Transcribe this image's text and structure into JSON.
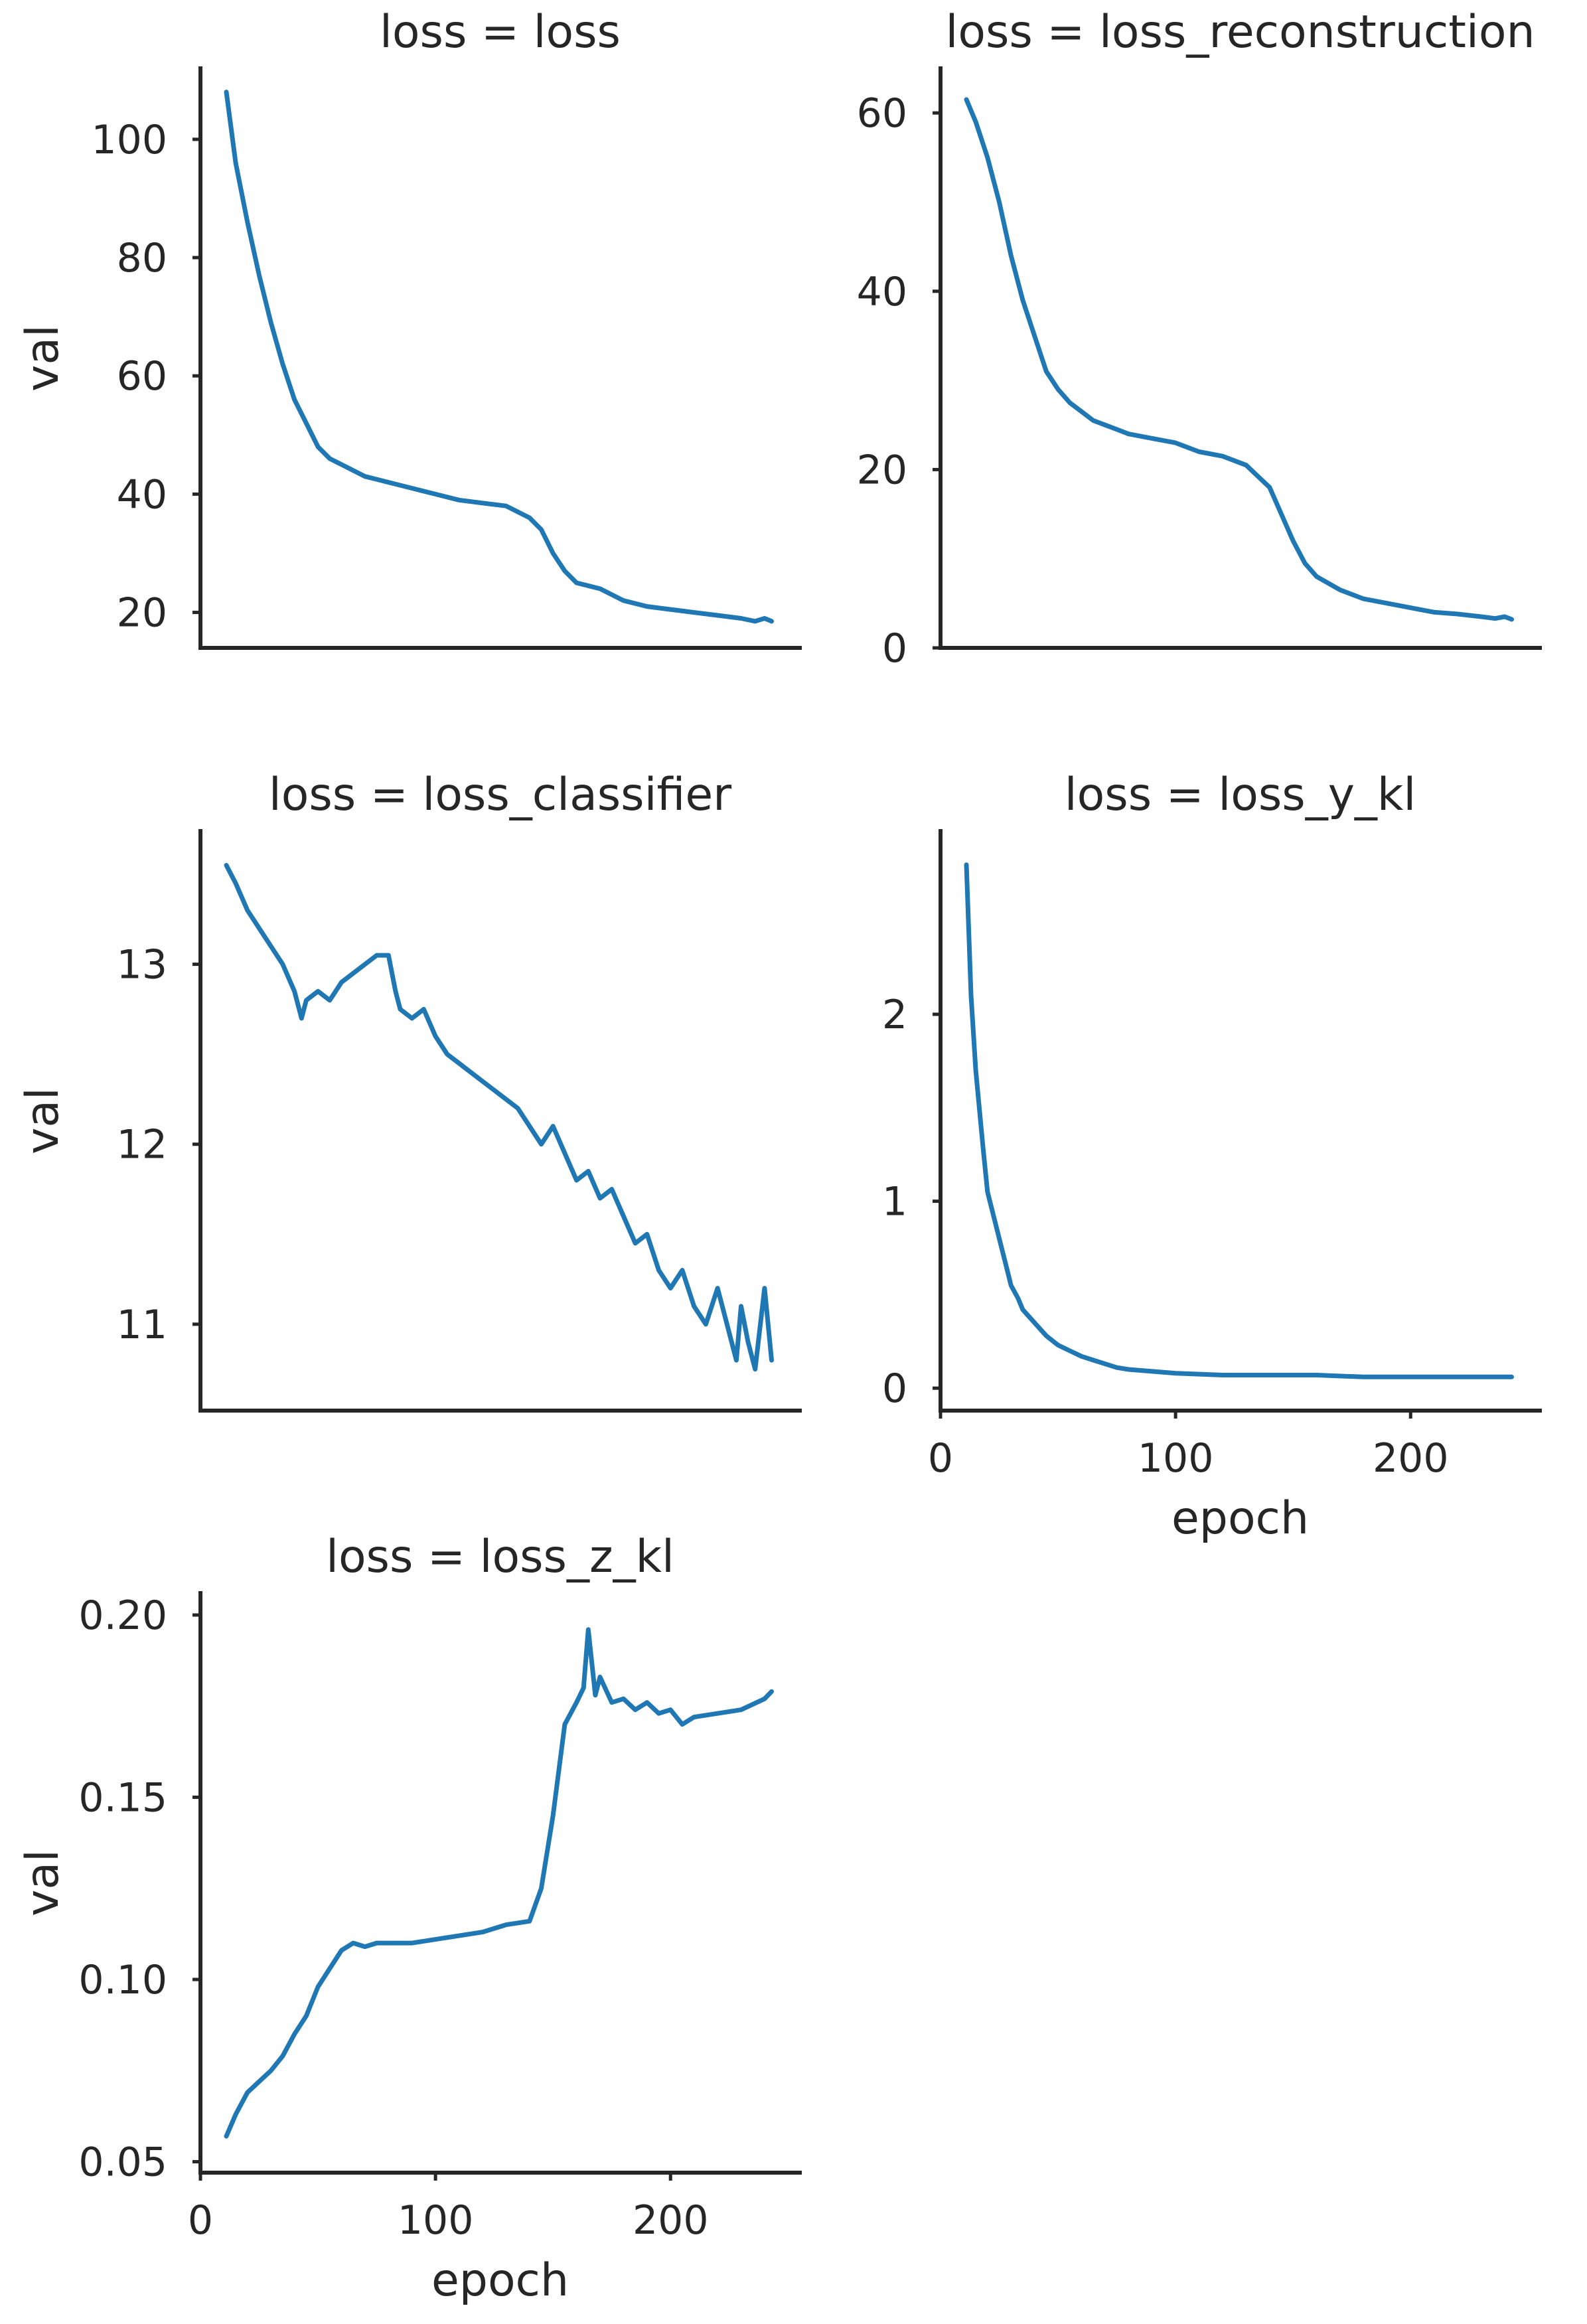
{
  "colors": {
    "line": "#1f77b4",
    "axis": "#262626",
    "background": "#ffffff"
  },
  "chart_data": [
    {
      "type": "line",
      "title": "loss = loss",
      "xlabel": "",
      "ylabel": "val",
      "xlim": [
        0,
        255
      ],
      "ylim": [
        14,
        112
      ],
      "yticks": [
        20,
        40,
        60,
        80,
        100
      ],
      "ytick_labels": [
        "20",
        "40",
        "60",
        "80",
        "100"
      ],
      "xticks": [],
      "xtick_labels": [],
      "series": [
        {
          "x": [
            11,
            15,
            20,
            25,
            30,
            35,
            40,
            45,
            50,
            55,
            60,
            65,
            70,
            75,
            80,
            90,
            100,
            110,
            120,
            130,
            140,
            145,
            150,
            155,
            160,
            170,
            180,
            190,
            200,
            210,
            220,
            230,
            236,
            240,
            243
          ],
          "values": [
            108,
            96,
            86,
            77,
            69,
            62,
            56,
            52,
            48,
            46,
            45,
            44,
            43,
            42.5,
            42,
            41,
            40,
            39,
            38.5,
            38,
            36,
            34,
            30,
            27,
            25,
            24,
            22,
            21,
            20.5,
            20,
            19.5,
            19,
            18.5,
            19,
            18.5
          ]
        }
      ]
    },
    {
      "type": "line",
      "title": "loss = loss_reconstruction",
      "xlabel": "",
      "ylabel": "",
      "xlim": [
        0,
        255
      ],
      "ylim": [
        0,
        65
      ],
      "yticks": [
        0,
        20,
        40,
        60
      ],
      "ytick_labels": [
        "0",
        "20",
        "40",
        "60"
      ],
      "xticks": [],
      "xtick_labels": [],
      "series": [
        {
          "x": [
            11,
            15,
            20,
            25,
            30,
            35,
            40,
            45,
            50,
            55,
            60,
            65,
            70,
            75,
            80,
            90,
            100,
            110,
            120,
            130,
            140,
            145,
            150,
            155,
            160,
            170,
            180,
            190,
            200,
            210,
            220,
            230,
            236,
            240,
            243
          ],
          "values": [
            61.5,
            59,
            55,
            50,
            44,
            39,
            35,
            31,
            29,
            27.5,
            26.5,
            25.5,
            25,
            24.5,
            24,
            23.5,
            23,
            22,
            21.5,
            20.5,
            18,
            15,
            12,
            9.5,
            8,
            6.5,
            5.5,
            5,
            4.5,
            4,
            3.8,
            3.5,
            3.3,
            3.5,
            3.2
          ]
        }
      ]
    },
    {
      "type": "line",
      "title": "loss = loss_classifier",
      "xlabel": "",
      "ylabel": "val",
      "xlim": [
        0,
        255
      ],
      "ylim": [
        10.52,
        13.74
      ],
      "yticks": [
        11,
        12,
        13
      ],
      "ytick_labels": [
        "11",
        "12",
        "13"
      ],
      "xticks": [],
      "xtick_labels": [],
      "series": [
        {
          "x": [
            11,
            15,
            20,
            25,
            30,
            35,
            40,
            43,
            45,
            50,
            55,
            60,
            65,
            70,
            75,
            80,
            83,
            85,
            90,
            95,
            100,
            105,
            110,
            115,
            120,
            125,
            130,
            135,
            140,
            145,
            150,
            155,
            160,
            165,
            170,
            175,
            180,
            185,
            190,
            195,
            200,
            205,
            210,
            215,
            220,
            225,
            228,
            230,
            233,
            236,
            240,
            243
          ],
          "values": [
            13.55,
            13.45,
            13.3,
            13.2,
            13.1,
            13.0,
            12.85,
            12.7,
            12.8,
            12.85,
            12.8,
            12.9,
            12.95,
            13.0,
            13.05,
            13.05,
            12.85,
            12.75,
            12.7,
            12.75,
            12.6,
            12.5,
            12.45,
            12.4,
            12.35,
            12.3,
            12.25,
            12.2,
            12.1,
            12.0,
            12.1,
            11.95,
            11.8,
            11.85,
            11.7,
            11.75,
            11.6,
            11.45,
            11.5,
            11.3,
            11.2,
            11.3,
            11.1,
            11.0,
            11.2,
            10.95,
            10.8,
            11.1,
            10.9,
            10.75,
            11.2,
            10.8
          ]
        }
      ]
    },
    {
      "type": "line",
      "title": "loss = loss_y_kl",
      "xlabel": "epoch",
      "ylabel": "",
      "xlim": [
        0,
        255
      ],
      "ylim": [
        -0.12,
        2.98
      ],
      "yticks": [
        0,
        1,
        2
      ],
      "ytick_labels": [
        "0",
        "1",
        "2"
      ],
      "xticks": [
        0,
        100,
        200
      ],
      "xtick_labels": [
        "0",
        "100",
        "200"
      ],
      "series": [
        {
          "x": [
            11,
            13,
            15,
            18,
            20,
            22,
            25,
            28,
            30,
            33,
            35,
            40,
            45,
            50,
            55,
            60,
            65,
            70,
            75,
            80,
            90,
            100,
            120,
            140,
            160,
            180,
            200,
            220,
            243
          ],
          "values": [
            2.8,
            2.1,
            1.7,
            1.3,
            1.05,
            0.95,
            0.8,
            0.65,
            0.55,
            0.48,
            0.42,
            0.35,
            0.28,
            0.23,
            0.2,
            0.17,
            0.15,
            0.13,
            0.11,
            0.1,
            0.09,
            0.08,
            0.07,
            0.07,
            0.07,
            0.06,
            0.06,
            0.06,
            0.06
          ]
        }
      ]
    },
    {
      "type": "line",
      "title": "loss = loss_z_kl",
      "xlabel": "epoch",
      "ylabel": "val",
      "xlim": [
        0,
        255
      ],
      "ylim": [
        0.047,
        0.206
      ],
      "yticks": [
        0.05,
        0.1,
        0.15,
        0.2
      ],
      "ytick_labels": [
        "0.05",
        "0.10",
        "0.15",
        "0.20"
      ],
      "xticks": [
        0,
        100,
        200
      ],
      "xtick_labels": [
        "0",
        "100",
        "200"
      ],
      "series": [
        {
          "x": [
            11,
            15,
            20,
            25,
            30,
            35,
            40,
            45,
            50,
            55,
            60,
            65,
            70,
            75,
            80,
            90,
            100,
            110,
            120,
            130,
            140,
            145,
            150,
            153,
            155,
            160,
            163,
            165,
            168,
            170,
            175,
            180,
            185,
            190,
            195,
            200,
            205,
            210,
            220,
            230,
            240,
            243
          ],
          "values": [
            0.057,
            0.063,
            0.069,
            0.072,
            0.075,
            0.079,
            0.085,
            0.09,
            0.098,
            0.103,
            0.108,
            0.11,
            0.109,
            0.11,
            0.11,
            0.11,
            0.111,
            0.112,
            0.113,
            0.115,
            0.116,
            0.125,
            0.145,
            0.16,
            0.17,
            0.176,
            0.18,
            0.196,
            0.178,
            0.183,
            0.176,
            0.177,
            0.174,
            0.176,
            0.173,
            0.174,
            0.17,
            0.172,
            0.173,
            0.174,
            0.177,
            0.179
          ]
        }
      ]
    }
  ]
}
